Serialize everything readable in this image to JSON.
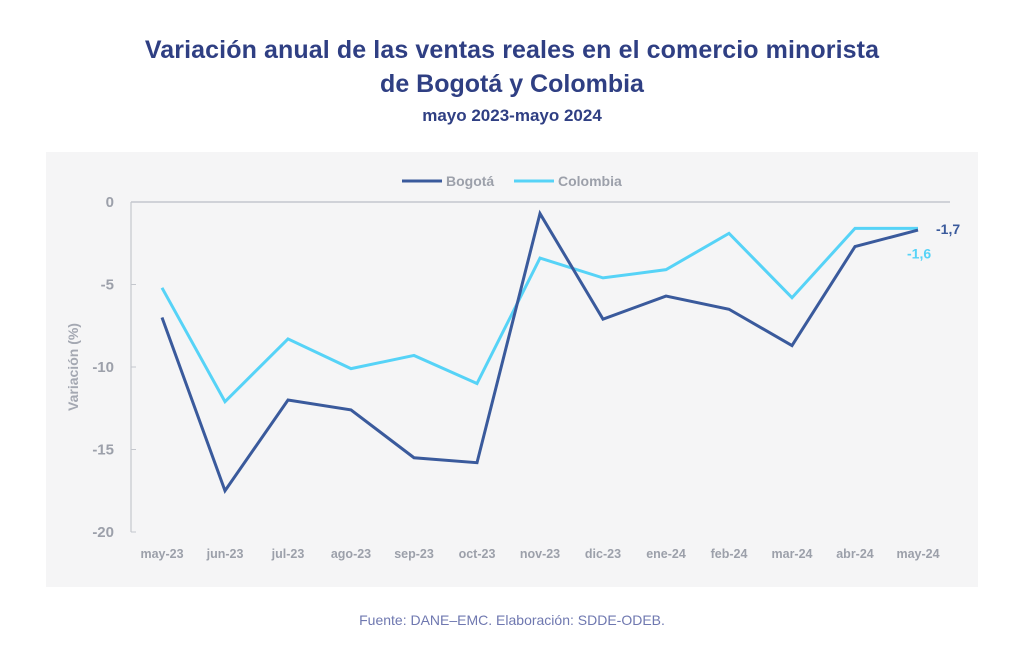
{
  "header": {
    "title_line1": "Variación anual de las ventas reales en el comercio minorista",
    "title_line2": "de Bogotá y Colombia",
    "subtitle": "mayo 2023-mayo 2024"
  },
  "footer": {
    "source": "Fuente: DANE–EMC. Elaboración: SDDE-ODEB."
  },
  "chart_data": {
    "type": "line",
    "title": "Variación anual de las ventas reales en el comercio minorista de Bogotá y Colombia",
    "subtitle": "mayo 2023-mayo 2024",
    "xlabel": "",
    "ylabel": "Variación (%)",
    "ylim": [
      -20,
      0
    ],
    "yticks": [
      0,
      -5,
      -10,
      -15,
      -20
    ],
    "ytick_labels": [
      "0",
      "-5",
      "-10",
      "-15",
      "-20"
    ],
    "grid": false,
    "legend_position": "top-center",
    "categories": [
      "may-23",
      "jun-23",
      "jul-23",
      "ago-23",
      "sep-23",
      "oct-23",
      "nov-23",
      "dic-23",
      "ene-24",
      "feb-24",
      "mar-24",
      "abr-24",
      "may-24"
    ],
    "series": [
      {
        "name": "Bogotá",
        "color": "#3a5a9c",
        "values": [
          -7.0,
          -17.5,
          -12.0,
          -12.6,
          -15.5,
          -15.8,
          -0.7,
          -7.1,
          -5.7,
          -6.5,
          -8.7,
          -2.7,
          -1.7
        ],
        "end_label": "-1,7"
      },
      {
        "name": "Colombia",
        "color": "#56d3f7",
        "values": [
          -5.2,
          -12.1,
          -8.3,
          -10.1,
          -9.3,
          -11.0,
          -3.4,
          -4.6,
          -4.1,
          -1.9,
          -5.8,
          -1.6,
          -1.6
        ],
        "end_label": "-1,6"
      }
    ]
  }
}
